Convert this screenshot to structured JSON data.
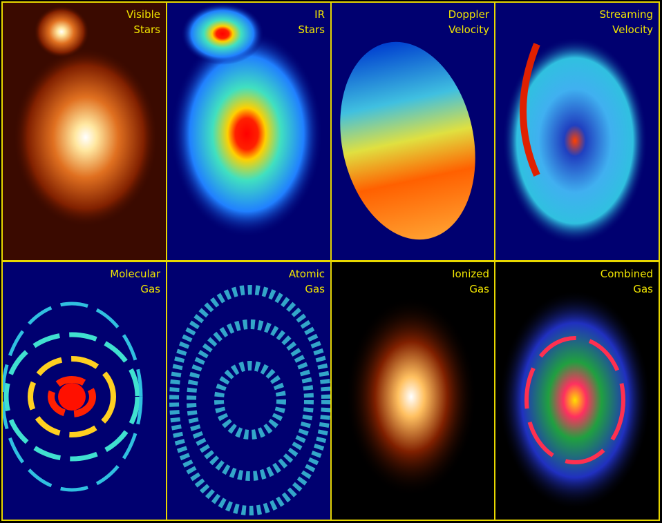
{
  "panels": [
    {
      "label": [
        "Visible",
        "Stars"
      ]
    },
    {
      "label": [
        "IR",
        "Stars"
      ]
    },
    {
      "label": [
        "Doppler",
        "Velocity"
      ]
    },
    {
      "label": [
        "Streaming",
        "Velocity"
      ]
    },
    {
      "label": [
        "Molecular",
        "Gas"
      ]
    },
    {
      "label": [
        "Atomic",
        "Gas"
      ]
    },
    {
      "label": [
        "Ionized",
        "Gas"
      ]
    },
    {
      "label": [
        "Combined",
        "Gas"
      ]
    }
  ]
}
